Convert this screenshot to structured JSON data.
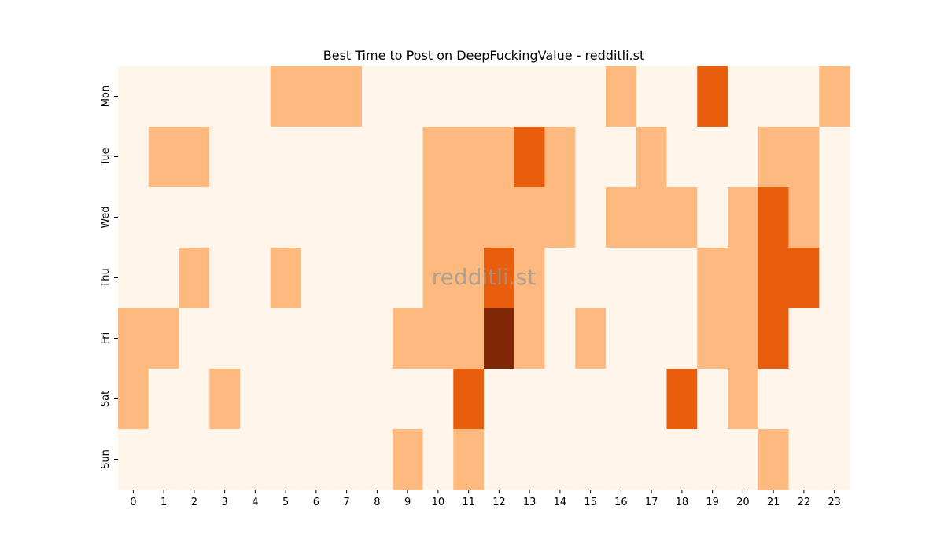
{
  "chart_data": {
    "type": "heatmap",
    "title": "Best Time to Post on DeepFuckingValue - redditli.st",
    "watermark": "redditli.st",
    "x": [
      "0",
      "1",
      "2",
      "3",
      "4",
      "5",
      "6",
      "7",
      "8",
      "9",
      "10",
      "11",
      "12",
      "13",
      "14",
      "15",
      "16",
      "17",
      "18",
      "19",
      "20",
      "21",
      "22",
      "23"
    ],
    "y": [
      "Mon",
      "Tue",
      "Wed",
      "Thu",
      "Fri",
      "Sat",
      "Sun"
    ],
    "levels": 4,
    "colors": [
      "#fff5eb",
      "#fdb97e",
      "#e95e0d",
      "#7f2704"
    ],
    "values": [
      [
        0,
        0,
        0,
        0,
        0,
        1,
        1,
        1,
        0,
        0,
        0,
        0,
        0,
        0,
        0,
        0,
        1,
        0,
        0,
        2,
        0,
        0,
        0,
        1
      ],
      [
        0,
        1,
        1,
        0,
        0,
        0,
        0,
        0,
        0,
        0,
        1,
        1,
        1,
        2,
        1,
        0,
        0,
        1,
        0,
        0,
        0,
        1,
        1,
        0
      ],
      [
        0,
        0,
        0,
        0,
        0,
        0,
        0,
        0,
        0,
        0,
        1,
        1,
        1,
        1,
        1,
        0,
        1,
        1,
        1,
        0,
        1,
        2,
        1,
        0
      ],
      [
        0,
        0,
        1,
        0,
        0,
        1,
        0,
        0,
        0,
        0,
        1,
        1,
        2,
        1,
        0,
        0,
        0,
        0,
        0,
        1,
        1,
        2,
        2,
        0
      ],
      [
        1,
        1,
        0,
        0,
        0,
        0,
        0,
        0,
        0,
        1,
        1,
        1,
        3,
        1,
        0,
        1,
        0,
        0,
        0,
        1,
        1,
        2,
        0,
        0
      ],
      [
        1,
        0,
        0,
        1,
        0,
        0,
        0,
        0,
        0,
        0,
        0,
        2,
        0,
        0,
        0,
        0,
        0,
        0,
        2,
        0,
        1,
        0,
        0,
        0
      ],
      [
        0,
        0,
        0,
        0,
        0,
        0,
        0,
        0,
        0,
        1,
        0,
        1,
        0,
        0,
        0,
        0,
        0,
        0,
        0,
        0,
        0,
        1,
        0,
        0
      ]
    ]
  }
}
